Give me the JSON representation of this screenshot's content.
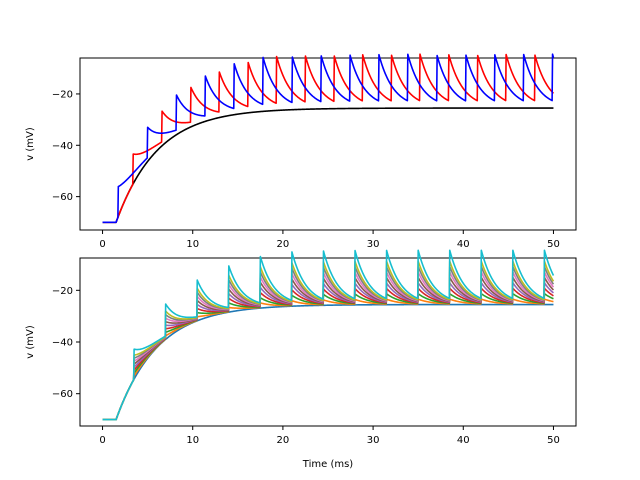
{
  "chart_data": [
    {
      "type": "line",
      "xlabel": "",
      "ylabel": "v (mV)",
      "xlim": [
        -2.5,
        52.5
      ],
      "ylim": [
        -73,
        -6
      ],
      "xticks": [
        0,
        10,
        20,
        30,
        40,
        50
      ],
      "yticks": [
        -60,
        -40,
        -20
      ],
      "xtick_labels": [
        "0",
        "10",
        "20",
        "30",
        "40",
        "50"
      ],
      "ytick_labels": [
        "−60",
        "−40",
        "−20"
      ],
      "series": [
        {
          "color": "#000000",
          "spike_start": null,
          "period": null,
          "amplitude": 0
        },
        {
          "color": "#ff0000",
          "spike_start": 3.4,
          "period": 3.18,
          "amplitude": 1.0
        },
        {
          "color": "#0000ff",
          "spike_start": 1.75,
          "period": 3.21,
          "amplitude": 1.0
        }
      ]
    },
    {
      "type": "line",
      "xlabel": "Time (ms)",
      "ylabel": "v (mV)",
      "xlim": [
        -2.5,
        52.5
      ],
      "ylim": [
        -72.5,
        -7.5
      ],
      "xticks": [
        0,
        10,
        20,
        30,
        40,
        50
      ],
      "yticks": [
        -60,
        -40,
        -20
      ],
      "xtick_labels": [
        "0",
        "10",
        "20",
        "30",
        "40",
        "50"
      ],
      "ytick_labels": [
        "−60",
        "−40",
        "−20"
      ],
      "series": [
        {
          "color": "#1f77b4",
          "amplitude": 0.0
        },
        {
          "color": "#ff7f0e",
          "amplitude": 0.1
        },
        {
          "color": "#2ca02c",
          "amplitude": 0.2
        },
        {
          "color": "#d62728",
          "amplitude": 0.3
        },
        {
          "color": "#9467bd",
          "amplitude": 0.4
        },
        {
          "color": "#8c564b",
          "amplitude": 0.5
        },
        {
          "color": "#e377c2",
          "amplitude": 0.6
        },
        {
          "color": "#7f7f7f",
          "amplitude": 0.7
        },
        {
          "color": "#bcbd22",
          "amplitude": 0.8
        },
        {
          "color": "#17becf",
          "amplitude": 1.0
        }
      ],
      "spike_start": 3.5,
      "period": 3.5
    }
  ]
}
